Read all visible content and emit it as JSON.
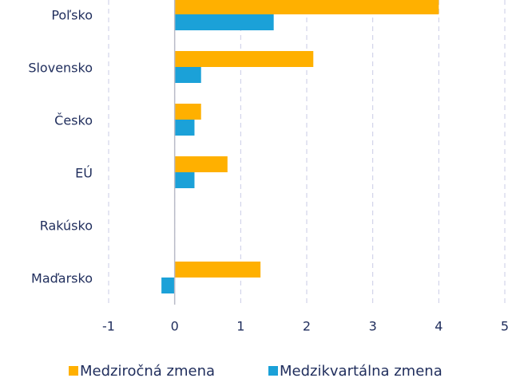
{
  "chart_data": {
    "type": "hbar",
    "categories": [
      "Poľsko",
      "Slovensko",
      "Česko",
      "EÚ",
      "Rakúsko",
      "Maďarsko"
    ],
    "series": [
      {
        "name": "Medziročná zmena",
        "color": "#ffb000",
        "values": [
          4.0,
          2.1,
          0.4,
          0.8,
          0,
          1.3
        ]
      },
      {
        "name": "Medzikvartálna zmena",
        "color": "#1ba1d8",
        "values": [
          1.5,
          0.4,
          0.3,
          0.3,
          0,
          -0.2
        ]
      }
    ],
    "xlim": [
      -1,
      5
    ],
    "xticks": [
      -1,
      0,
      1,
      2,
      3,
      4,
      5
    ],
    "grid": true,
    "legend": "bottom"
  }
}
